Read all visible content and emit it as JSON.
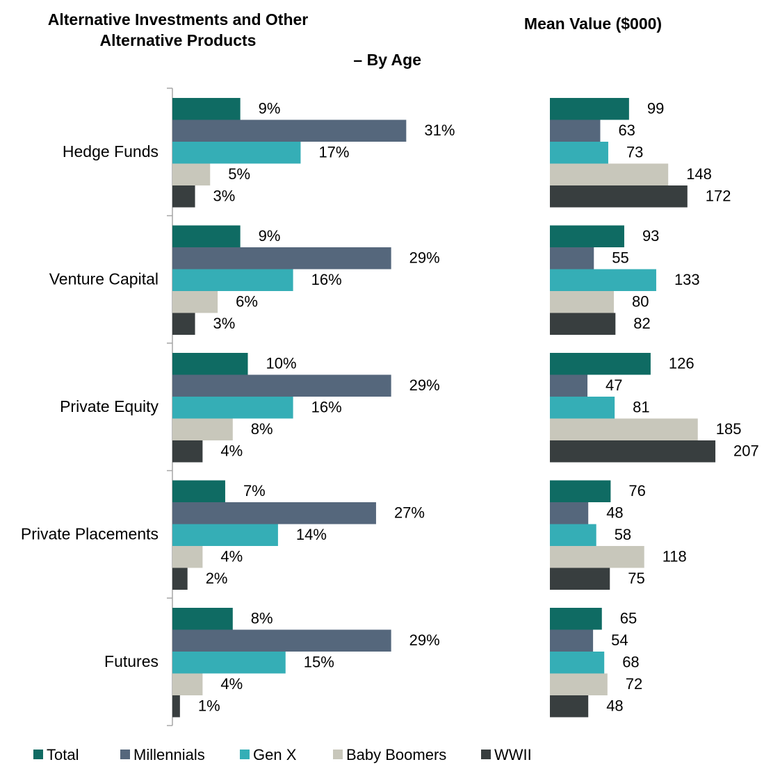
{
  "chart_data": [
    {
      "type": "bar",
      "orientation": "horizontal",
      "title": "Alternative Investments and Other Alternative Products",
      "subtitle": "– By Age",
      "categories": [
        "Hedge Funds",
        "Venture Capital",
        "Private Equity",
        "Private Placements",
        "Futures"
      ],
      "value_suffix": "%",
      "xlim": [
        0,
        35
      ],
      "grid": false,
      "series": [
        {
          "name": "Total",
          "color": "#0f6b63",
          "values": [
            9,
            9,
            10,
            7,
            8
          ]
        },
        {
          "name": "Millennials",
          "color": "#55677c",
          "values": [
            31,
            29,
            29,
            27,
            29
          ]
        },
        {
          "name": "Gen X",
          "color": "#35aeb6",
          "values": [
            17,
            16,
            16,
            14,
            15
          ]
        },
        {
          "name": "Baby Boomers",
          "color": "#c8c7bb",
          "values": [
            5,
            6,
            8,
            4,
            4
          ]
        },
        {
          "name": "WWII",
          "color": "#383e3f",
          "values": [
            3,
            3,
            4,
            2,
            1
          ]
        }
      ]
    },
    {
      "type": "bar",
      "orientation": "horizontal",
      "title": "Mean Value ($000)",
      "categories": [
        "Hedge Funds",
        "Venture Capital",
        "Private Equity",
        "Private Placements",
        "Futures"
      ],
      "value_suffix": "",
      "xlim": [
        0,
        230
      ],
      "grid": false,
      "series": [
        {
          "name": "Total",
          "color": "#0f6b63",
          "values": [
            99,
            93,
            126,
            76,
            65
          ]
        },
        {
          "name": "Millennials",
          "color": "#55677c",
          "values": [
            63,
            55,
            47,
            48,
            54
          ]
        },
        {
          "name": "Gen X",
          "color": "#35aeb6",
          "values": [
            73,
            133,
            81,
            58,
            68
          ]
        },
        {
          "name": "Baby Boomers",
          "color": "#c8c7bb",
          "values": [
            148,
            80,
            185,
            118,
            72
          ]
        },
        {
          "name": "WWII",
          "color": "#383e3f",
          "values": [
            172,
            82,
            207,
            75,
            48
          ]
        }
      ]
    }
  ],
  "legend": {
    "position": "bottom",
    "items": [
      {
        "label": "Total",
        "color": "#0f6b63"
      },
      {
        "label": "Millennials",
        "color": "#55677c"
      },
      {
        "label": "Gen X",
        "color": "#35aeb6"
      },
      {
        "label": "Baby Boomers",
        "color": "#c8c7bb"
      },
      {
        "label": "WWII",
        "color": "#383e3f"
      }
    ]
  }
}
